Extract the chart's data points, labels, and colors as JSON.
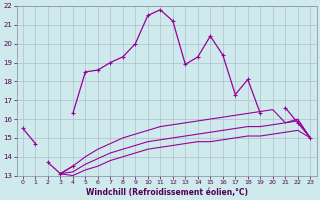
{
  "x": [
    0,
    1,
    2,
    3,
    4,
    5,
    6,
    7,
    8,
    9,
    10,
    11,
    12,
    13,
    14,
    15,
    16,
    17,
    18,
    19,
    20,
    21,
    22,
    23
  ],
  "line1": [
    15.5,
    14.7,
    null,
    null,
    16.3,
    18.5,
    18.6,
    19.0,
    19.3,
    20.0,
    21.5,
    21.8,
    21.2,
    18.9,
    19.3,
    20.4,
    19.4,
    17.3,
    18.1,
    16.3,
    null,
    16.6,
    15.8,
    15.0
  ],
  "line2": [
    null,
    null,
    13.7,
    13.1,
    13.5,
    null,
    null,
    null,
    null,
    null,
    null,
    null,
    null,
    null,
    null,
    null,
    null,
    null,
    null,
    null,
    null,
    null,
    null,
    null
  ],
  "line3_x": [
    3,
    4,
    5,
    6,
    7,
    8,
    9,
    10,
    11,
    12,
    13,
    14,
    15,
    16,
    17,
    18,
    19,
    20,
    21,
    22,
    23
  ],
  "line3_y": [
    13.1,
    13.5,
    14.0,
    14.4,
    14.7,
    15.0,
    15.2,
    15.4,
    15.6,
    15.7,
    15.8,
    15.9,
    16.0,
    16.1,
    16.2,
    16.3,
    16.4,
    16.5,
    15.8,
    16.0,
    15.0
  ],
  "line4_x": [
    3,
    4,
    5,
    6,
    7,
    8,
    9,
    10,
    11,
    12,
    13,
    14,
    15,
    16,
    17,
    18,
    19,
    20,
    21,
    22,
    23
  ],
  "line4_y": [
    13.1,
    13.2,
    13.6,
    13.9,
    14.2,
    14.4,
    14.6,
    14.8,
    14.9,
    15.0,
    15.1,
    15.2,
    15.3,
    15.4,
    15.5,
    15.6,
    15.6,
    15.7,
    15.8,
    15.9,
    15.0
  ],
  "line5_x": [
    3,
    4,
    5,
    6,
    7,
    8,
    9,
    10,
    11,
    12,
    13,
    14,
    15,
    16,
    17,
    18,
    19,
    20,
    21,
    22,
    23
  ],
  "line5_y": [
    13.1,
    13.0,
    13.3,
    13.5,
    13.8,
    14.0,
    14.2,
    14.4,
    14.5,
    14.6,
    14.7,
    14.8,
    14.8,
    14.9,
    15.0,
    15.1,
    15.1,
    15.2,
    15.3,
    15.4,
    15.0
  ],
  "line_color": "#990099",
  "bg_color": "#ceeaec",
  "grid_color": "#b0b8cc",
  "xlabel": "Windchill (Refroidissement éolien,°C)",
  "ylim": [
    13,
    22
  ],
  "xlim": [
    -0.5,
    23.5
  ],
  "yticks": [
    13,
    14,
    15,
    16,
    17,
    18,
    19,
    20,
    21,
    22
  ],
  "xticks": [
    0,
    1,
    2,
    3,
    4,
    5,
    6,
    7,
    8,
    9,
    10,
    11,
    12,
    13,
    14,
    15,
    16,
    17,
    18,
    19,
    20,
    21,
    22,
    23
  ]
}
